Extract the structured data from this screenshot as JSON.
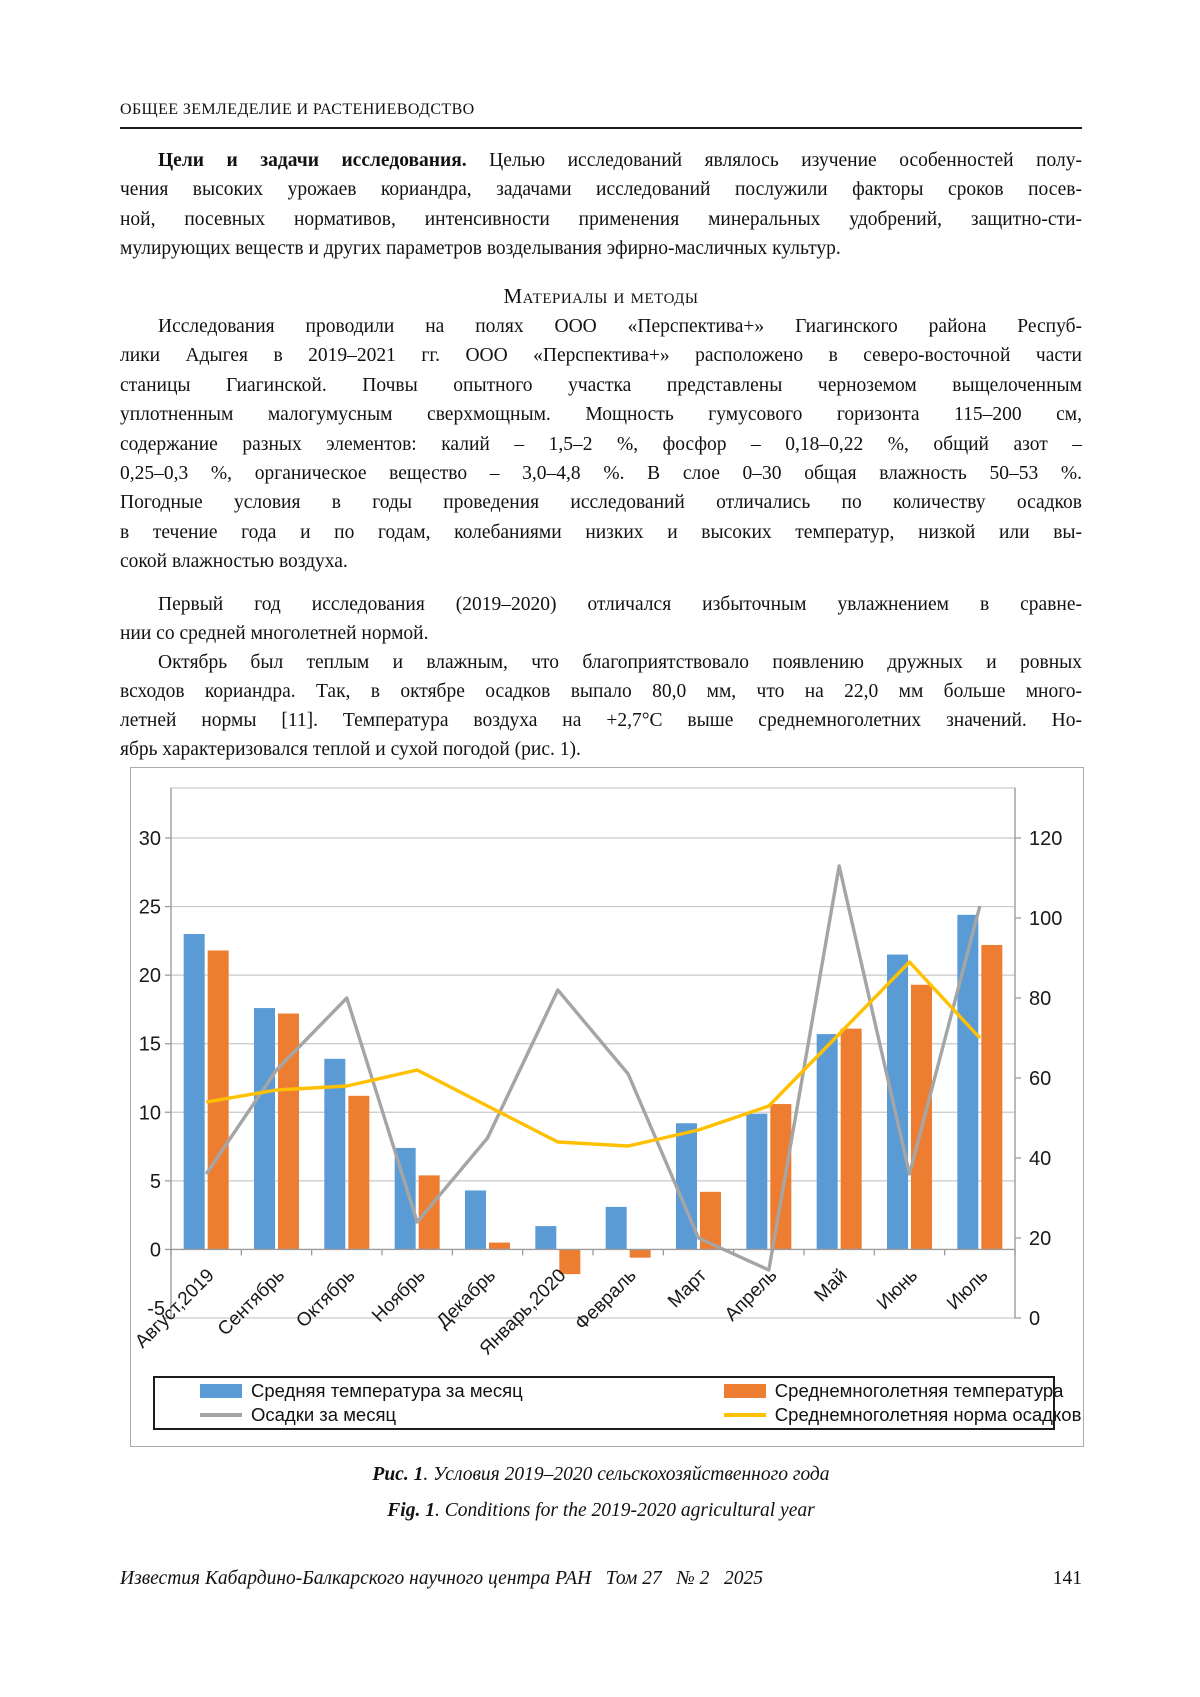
{
  "page": {
    "running_head": "ОБЩЕЕ ЗЕМЛЕДЕЛИЕ И РАСТЕНИЕВОДСТВО",
    "footer_left": "Известия Кабардино-Балкарского научного центра РАН   Том 27   № 2   2025",
    "page_number": "141"
  },
  "p1": {
    "lead": "Цели и задачи исследования.",
    "l1_rest": " Целью исследований являлось изучение особенностей полу-",
    "lines": [
      "чения высоких урожаев кориандра, задачами исследований послужили факторы сроков посев-",
      "ной, посевных нормативов, интенсивности применения минеральных удобрений, защитно-сти-",
      "мулирующих веществ и других параметров возделывания эфирно-масличных культур."
    ]
  },
  "section_heading": "Материалы и методы",
  "p2": {
    "lines": [
      "Исследования проводили на полях ООО «Перспектива+» Гиагинского района Респуб-",
      "лики Адыгея в 2019–2021 гг. ООО «Перспектива+» расположено в северо-восточной части",
      "станицы Гиагинской. Почвы опытного участка представлены черноземом выщелоченным",
      "уплотненным малогумусным сверхмощным. Мощность гумусового горизонта 115–200 см,",
      "содержание разных элементов: калий – 1,5–2 %, фосфор – 0,18–0,22 %, общий азот –",
      "0,25–0,3 %, органическое вещество – 3,0–4,8 %. В слое 0–30 общая влажность 50–53 %.",
      "Погодные условия в годы проведения исследований отличались по количеству осадков",
      "в течение года и по годам, колебаниями низких и высоких температур, низкой или вы-",
      "сокой влажностью воздуха."
    ]
  },
  "p3": {
    "lines": [
      "Первый год исследования (2019–2020) отличался избыточным увлажнением в сравне-",
      "нии со средней многолетней нормой."
    ]
  },
  "p4": {
    "lines": [
      "Октябрь был теплым и влажным, что благоприятствовало появлению дружных и ровных",
      "всходов кориандра. Так, в октябре осадков выпало 80,0 мм, что на 22,0 мм больше много-",
      "летней нормы [11]. Температура воздуха на +2,7°С выше среднемноголетних значений. Но-",
      "ябрь характеризовался теплой и сухой погодой (рис. 1)."
    ]
  },
  "captions": {
    "ru_prefix": "Рис. 1",
    "ru_rest": ". Условия 2019–2020 сельскохозяйственного года",
    "en_prefix": "Fig. 1",
    "en_rest": ". Conditions for the 2019-2020 agricultural year"
  },
  "chart_data": {
    "type": "bar",
    "subtype": "dual-axis bar+line combo",
    "categories": [
      "Август,2019",
      "Сентябрь",
      "Октябрь",
      "Ноябрь",
      "Декабрь",
      "Январь,2020",
      "Февраль",
      "Март",
      "Апрель",
      "Май",
      "Июнь",
      "Июль"
    ],
    "series": [
      {
        "name": "Средняя температура за месяц",
        "type": "bar",
        "axis": "left",
        "color": "#5B9BD5",
        "values": [
          23.0,
          17.6,
          13.9,
          7.4,
          4.3,
          1.7,
          3.1,
          9.2,
          9.9,
          15.7,
          21.5,
          24.4
        ]
      },
      {
        "name": "Среднемноголетняя температура",
        "type": "bar",
        "axis": "left",
        "color": "#ED7D31",
        "values": [
          21.8,
          17.2,
          11.2,
          5.4,
          0.5,
          -1.8,
          -0.6,
          4.2,
          10.6,
          16.1,
          19.3,
          22.2
        ]
      },
      {
        "name": "Осадки за месяц",
        "type": "line",
        "axis": "right",
        "color": "#A5A5A5",
        "values": [
          36,
          62,
          80,
          24,
          45,
          82,
          61,
          20,
          12,
          113,
          36,
          103
        ]
      },
      {
        "name": "Среднемноголетняя норма осадков",
        "type": "line",
        "axis": "right",
        "color": "#FFC000",
        "values": [
          54,
          57,
          58,
          62,
          53,
          44,
          43,
          47,
          53,
          71,
          89,
          70
        ]
      }
    ],
    "left_axis": {
      "min": -5,
      "max": 30,
      "step": 5
    },
    "right_axis": {
      "min": 0,
      "max": 120,
      "step": 20
    },
    "grid": true,
    "legend_position": "bottom",
    "grid_color": "#C9C9C9",
    "axis_color": "#9B9B9B",
    "title": "",
    "xlabel": "",
    "ylabel": ""
  }
}
